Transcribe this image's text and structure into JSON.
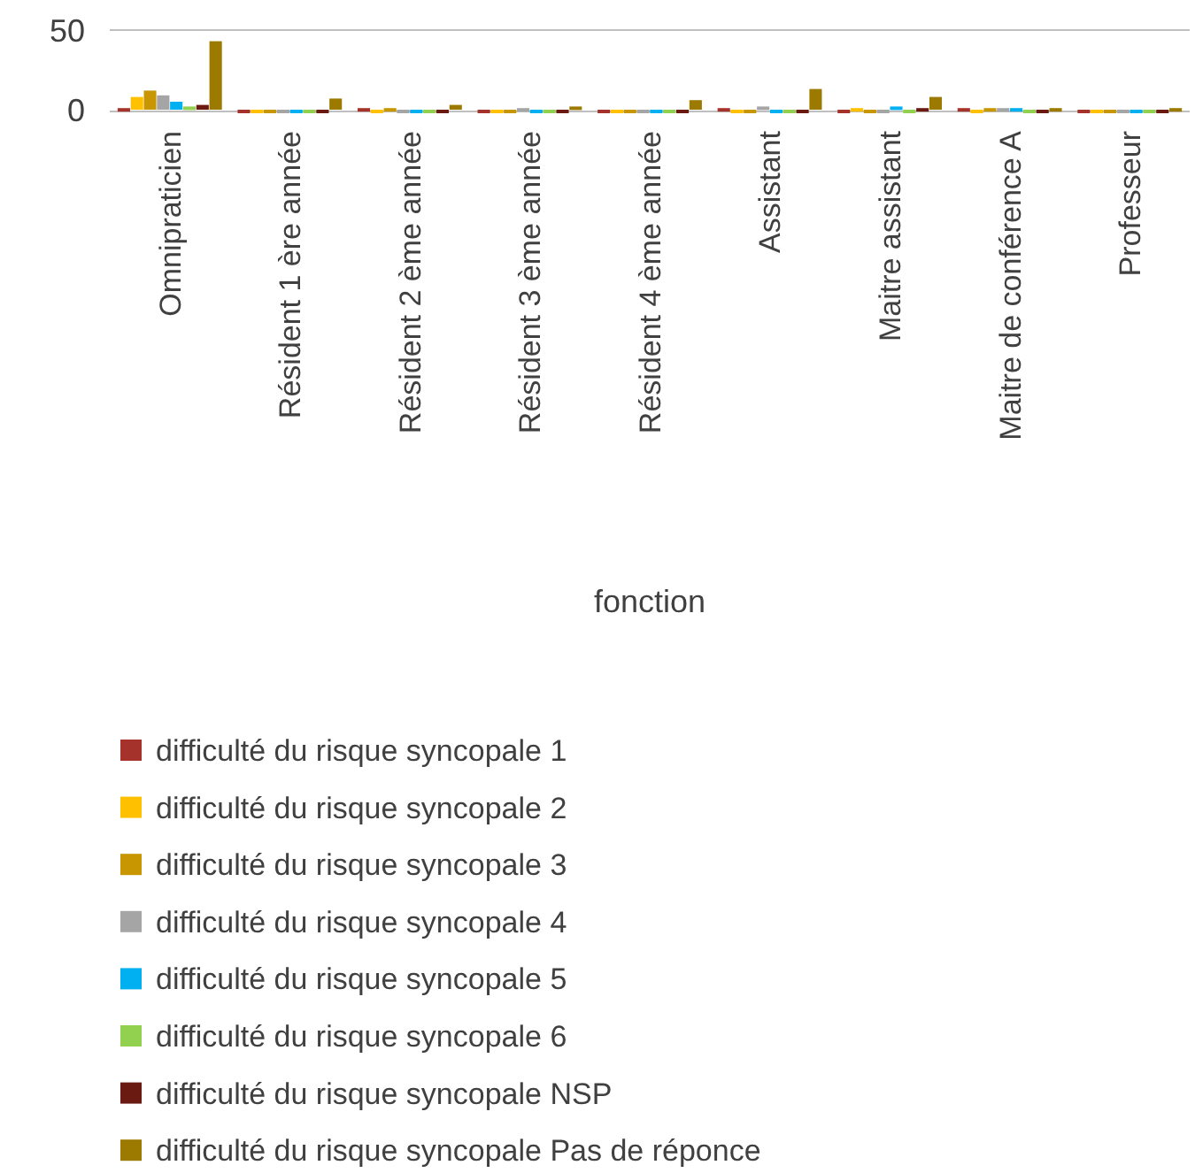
{
  "chart_data": {
    "type": "bar",
    "xlabel": "fonction",
    "categories": [
      "Omnipraticien",
      "Résident 1 ère année",
      "Résident 2 ème année",
      "Résident 3 ème année",
      "Résident 4 ème année",
      "Assistant",
      "Maitre assistant",
      "Maitre de conférence A",
      "Professeur"
    ],
    "series": [
      {
        "name": "difficulté du risque syncopale 1",
        "color": "#a5322b",
        "values": [
          1,
          0,
          1,
          0,
          0,
          1,
          0,
          1,
          0
        ]
      },
      {
        "name": "difficulté du risque syncopale 2",
        "color": "#ffc000",
        "values": [
          8,
          0,
          0,
          0,
          0,
          0,
          1,
          0,
          0
        ]
      },
      {
        "name": "difficulté du risque syncopale 3",
        "color": "#c89600",
        "values": [
          12,
          0,
          1,
          0,
          0,
          0,
          0,
          1,
          0
        ]
      },
      {
        "name": "difficulté du risque syncopale 4",
        "color": "#a5a5a5",
        "values": [
          9,
          0,
          0,
          1,
          0,
          2,
          0,
          1,
          0
        ]
      },
      {
        "name": "difficulté du risque syncopale 5",
        "color": "#00b0f0",
        "values": [
          5,
          0,
          0,
          0,
          0,
          0,
          2,
          1,
          0
        ]
      },
      {
        "name": "difficulté du risque syncopale 6",
        "color": "#92d050",
        "values": [
          2,
          0,
          0,
          0,
          0,
          0,
          0,
          0,
          0
        ]
      },
      {
        "name": "difficulté du risque syncopale NSP",
        "color": "#6b1a12",
        "values": [
          3,
          0,
          0,
          0,
          0,
          0,
          1,
          0,
          0
        ]
      },
      {
        "name": "difficulté du risque syncopale Pas de réponce",
        "color": "#9c7a00",
        "values": [
          43,
          7,
          3,
          2,
          6,
          13,
          8,
          1,
          1
        ]
      }
    ],
    "ylim": [
      0,
      50
    ],
    "yticks": [
      0,
      50
    ],
    "legend": "bottom"
  }
}
